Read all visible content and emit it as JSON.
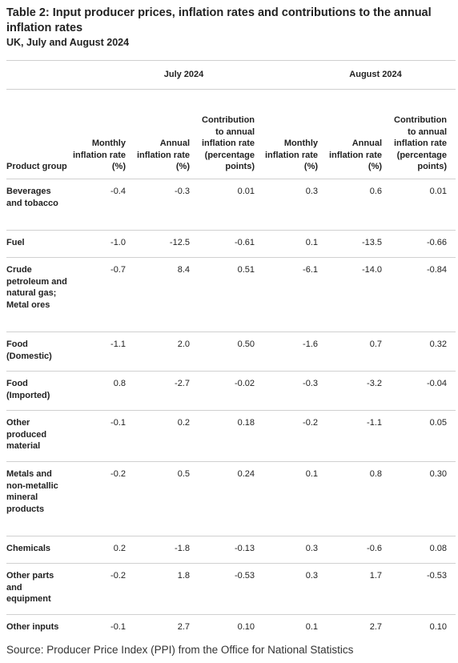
{
  "header": {
    "title": "Table 2: Input producer prices, inflation rates and contributions to the annual inflation rates",
    "subtitle": "UK, July and August 2024"
  },
  "table": {
    "periods": [
      "July 2024",
      "August 2024"
    ],
    "product_group_header": "Product group",
    "metric_headers": [
      "Monthly inflation rate (%)",
      "Annual inflation rate (%)",
      "Contribution to annual inflation rate (percentage points)"
    ],
    "rows": [
      {
        "name": "Beverages and tobacco",
        "values": [
          "-0.4",
          "-0.3",
          "0.01",
          "0.3",
          "0.6",
          "0.01"
        ]
      },
      {
        "name": "Fuel",
        "values": [
          "-1.0",
          "-12.5",
          "-0.61",
          "0.1",
          "-13.5",
          "-0.66"
        ]
      },
      {
        "name": "Crude petroleum and natural gas; Metal ores",
        "values": [
          "-0.7",
          "8.4",
          "0.51",
          "-6.1",
          "-14.0",
          "-0.84"
        ]
      },
      {
        "name": "Food (Domestic)",
        "values": [
          "-1.1",
          "2.0",
          "0.50",
          "-1.6",
          "0.7",
          "0.32"
        ]
      },
      {
        "name": "Food (Imported)",
        "values": [
          "0.8",
          "-2.7",
          "-0.02",
          "-0.3",
          "-3.2",
          "-0.04"
        ]
      },
      {
        "name": "Other produced material",
        "values": [
          "-0.1",
          "0.2",
          "0.18",
          "-0.2",
          "-1.1",
          "0.05"
        ]
      },
      {
        "name": "Metals and non-metallic mineral products",
        "values": [
          "-0.2",
          "0.5",
          "0.24",
          "0.1",
          "0.8",
          "0.30"
        ]
      },
      {
        "name": "Chemicals",
        "values": [
          "0.2",
          "-1.8",
          "-0.13",
          "0.3",
          "-0.6",
          "0.08"
        ]
      },
      {
        "name": "Other parts and equipment",
        "values": [
          "-0.2",
          "1.8",
          "-0.53",
          "0.3",
          "1.7",
          "-0.53"
        ]
      },
      {
        "name": "Other inputs",
        "values": [
          "-0.1",
          "2.7",
          "0.10",
          "0.1",
          "2.7",
          "0.10"
        ]
      }
    ]
  },
  "footer": {
    "source": "Source: Producer Price Index (PPI) from the Office for National Statistics"
  }
}
